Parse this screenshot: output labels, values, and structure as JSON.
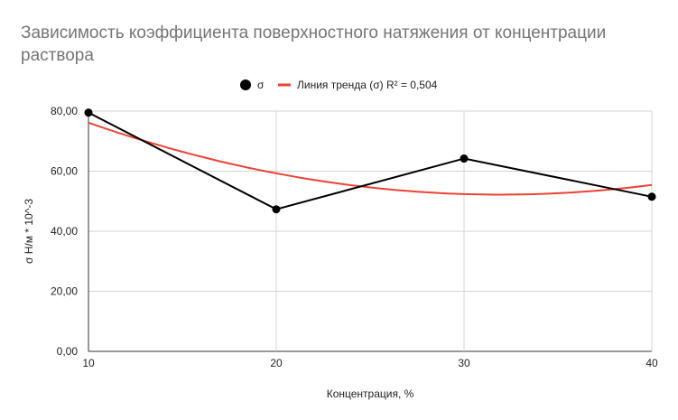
{
  "chart_data": {
    "type": "line",
    "title_line1": "Зависимость коэффициента поверхностного натяжения от концентрации",
    "title_line2": "раствора",
    "xlabel": "Концентрация, %",
    "ylabel": "σ Н/м * 10^-3",
    "x": [
      10,
      20,
      30,
      40
    ],
    "xlim": [
      10,
      40
    ],
    "xticks": [
      "10",
      "20",
      "30",
      "40"
    ],
    "ylim": [
      0,
      80
    ],
    "yticks": [
      "0,00",
      "20,00",
      "40,00",
      "60,00",
      "80,00"
    ],
    "grid": true,
    "legend_position": "top",
    "series": [
      {
        "name": "σ",
        "values": [
          79.5,
          47.3,
          64.2,
          51.5
        ],
        "color": "#000000",
        "marker": "circle"
      }
    ],
    "trendline": {
      "label": "Линия тренда (σ) R² = 0,504",
      "type": "polynomial-2",
      "color": "#ea4335",
      "x_samples": [
        10,
        15,
        20,
        25,
        30,
        35,
        40
      ],
      "y_samples": [
        76.0,
        66.6,
        59.4,
        54.6,
        52.3,
        52.4,
        55.6
      ]
    }
  }
}
